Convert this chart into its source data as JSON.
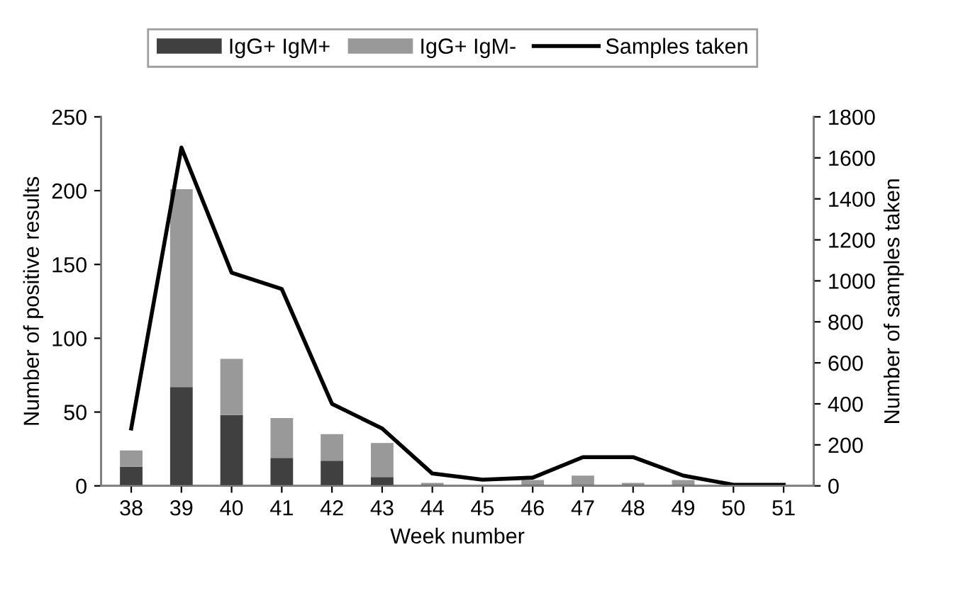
{
  "chart_data": {
    "type": "bar",
    "stacked": true,
    "xlabel": "Week number",
    "ylabel": "Number of positive results",
    "y2label": "Number of samples taken",
    "categories": [
      "38",
      "39",
      "40",
      "41",
      "42",
      "43",
      "44",
      "45",
      "46",
      "47",
      "48",
      "49",
      "50",
      "51"
    ],
    "series": [
      {
        "name": "IgG+ IgM+",
        "color": "#404040",
        "values": [
          13,
          67,
          48,
          19,
          17,
          6,
          null,
          0,
          0,
          null,
          0,
          0,
          0,
          0
        ]
      },
      {
        "name": "IgG+ IgM-",
        "color": "#999999",
        "values": [
          11,
          134,
          38,
          27,
          18,
          23,
          2,
          0,
          4,
          7,
          2,
          4,
          0,
          0
        ]
      },
      {
        "name": "Samples taken",
        "type": "line",
        "axis": "y2",
        "color": "#000000",
        "values": [
          280,
          1650,
          1040,
          960,
          400,
          280,
          60,
          30,
          40,
          140,
          140,
          50,
          5,
          5
        ]
      }
    ],
    "ylim": [
      0,
      250
    ],
    "yticks": [
      0,
      50,
      100,
      150,
      200,
      250
    ],
    "y2lim": [
      0,
      1800
    ],
    "y2ticks": [
      0,
      200,
      400,
      600,
      800,
      1000,
      1200,
      1400,
      1600,
      1800
    ],
    "grid": false,
    "legend": "top"
  }
}
